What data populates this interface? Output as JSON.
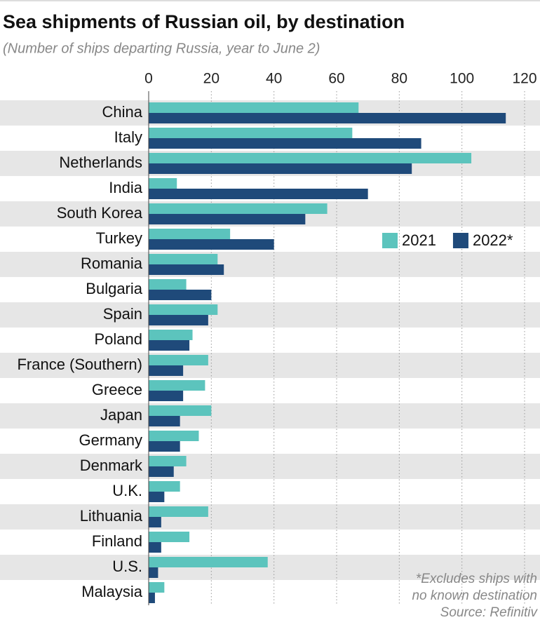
{
  "chart_data": {
    "type": "bar",
    "orientation": "horizontal",
    "title": "Sea shipments of Russian oil, by destination",
    "subtitle": "(Number of ships departing Russia, year to June 2)",
    "categories": [
      "China",
      "Italy",
      "Netherlands",
      "India",
      "South Korea",
      "Turkey",
      "Romania",
      "Bulgaria",
      "Spain",
      "Poland",
      "France (Southern)",
      "Greece",
      "Japan",
      "Germany",
      "Denmark",
      "U.K.",
      "Lithuania",
      "Finland",
      "U.S.",
      "Malaysia"
    ],
    "series": [
      {
        "name": "2021",
        "color": "#5cc4bd",
        "values": [
          67,
          65,
          103,
          9,
          57,
          26,
          22,
          12,
          22,
          14,
          19,
          18,
          20,
          16,
          12,
          10,
          19,
          13,
          38,
          5
        ]
      },
      {
        "name": "2022*",
        "color": "#1f4a7a",
        "values": [
          114,
          87,
          84,
          70,
          50,
          40,
          24,
          20,
          19,
          13,
          11,
          11,
          10,
          10,
          8,
          5,
          4,
          4,
          3,
          2
        ]
      }
    ],
    "xlim": [
      0,
      120
    ],
    "xticks": [
      0,
      20,
      40,
      60,
      80,
      100,
      120
    ],
    "grid": true,
    "legend": "right",
    "notes": [
      "*Excludes ships with",
      "no known destination",
      "Source: Refinitiv"
    ]
  }
}
